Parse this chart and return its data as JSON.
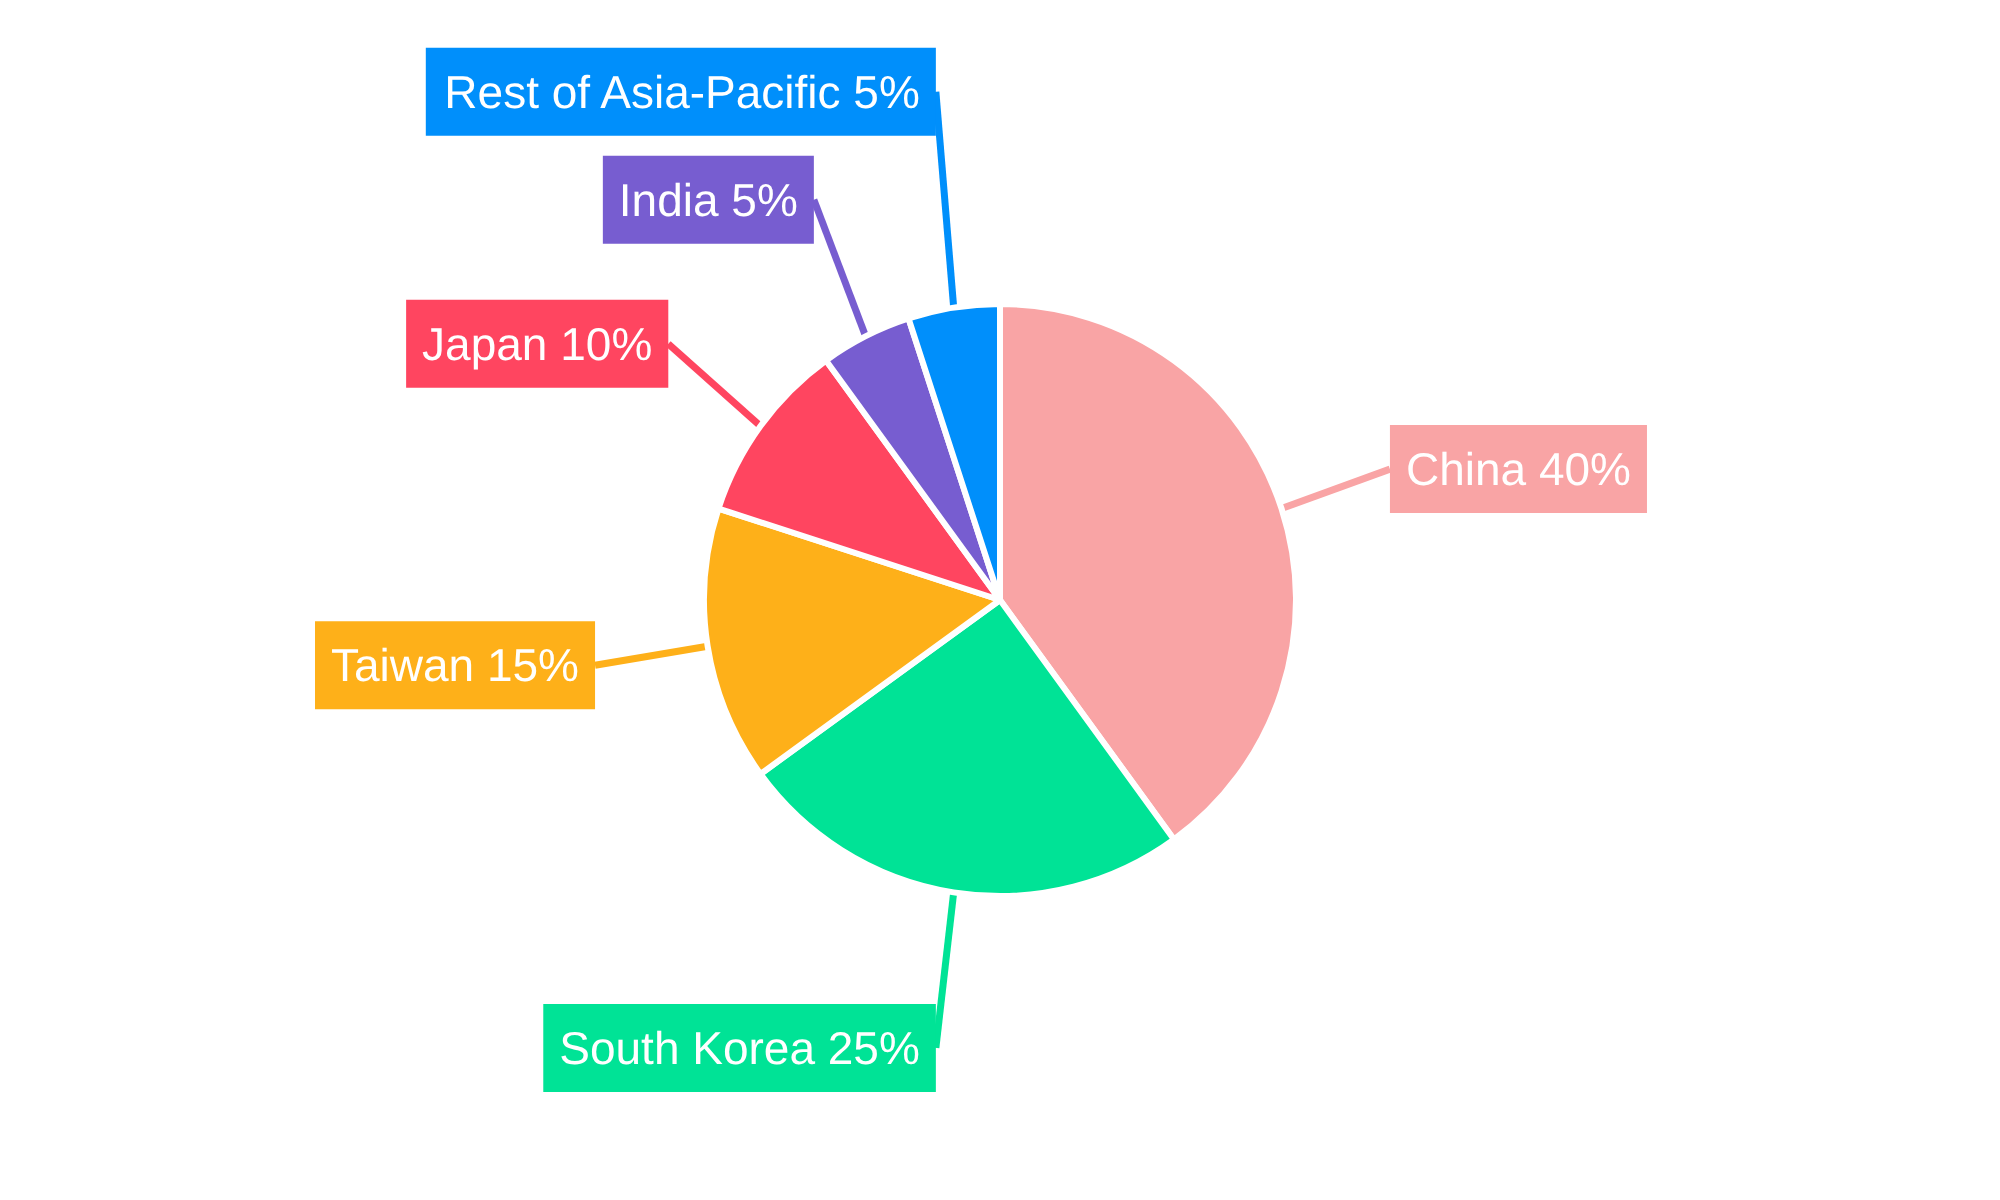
{
  "chart_data": {
    "type": "pie",
    "categories": [
      "China",
      "South Korea",
      "Taiwan",
      "Japan",
      "India",
      "Rest of Asia-Pacific"
    ],
    "values": [
      40,
      25,
      15,
      10,
      5,
      5
    ],
    "value_labels": [
      "40%",
      "25%",
      "15%",
      "10%",
      "5%",
      "5%"
    ],
    "colors": [
      "#f9a4a5",
      "#00e396",
      "#feb019",
      "#ff4560",
      "#775dd0",
      "#008ffb"
    ]
  }
}
